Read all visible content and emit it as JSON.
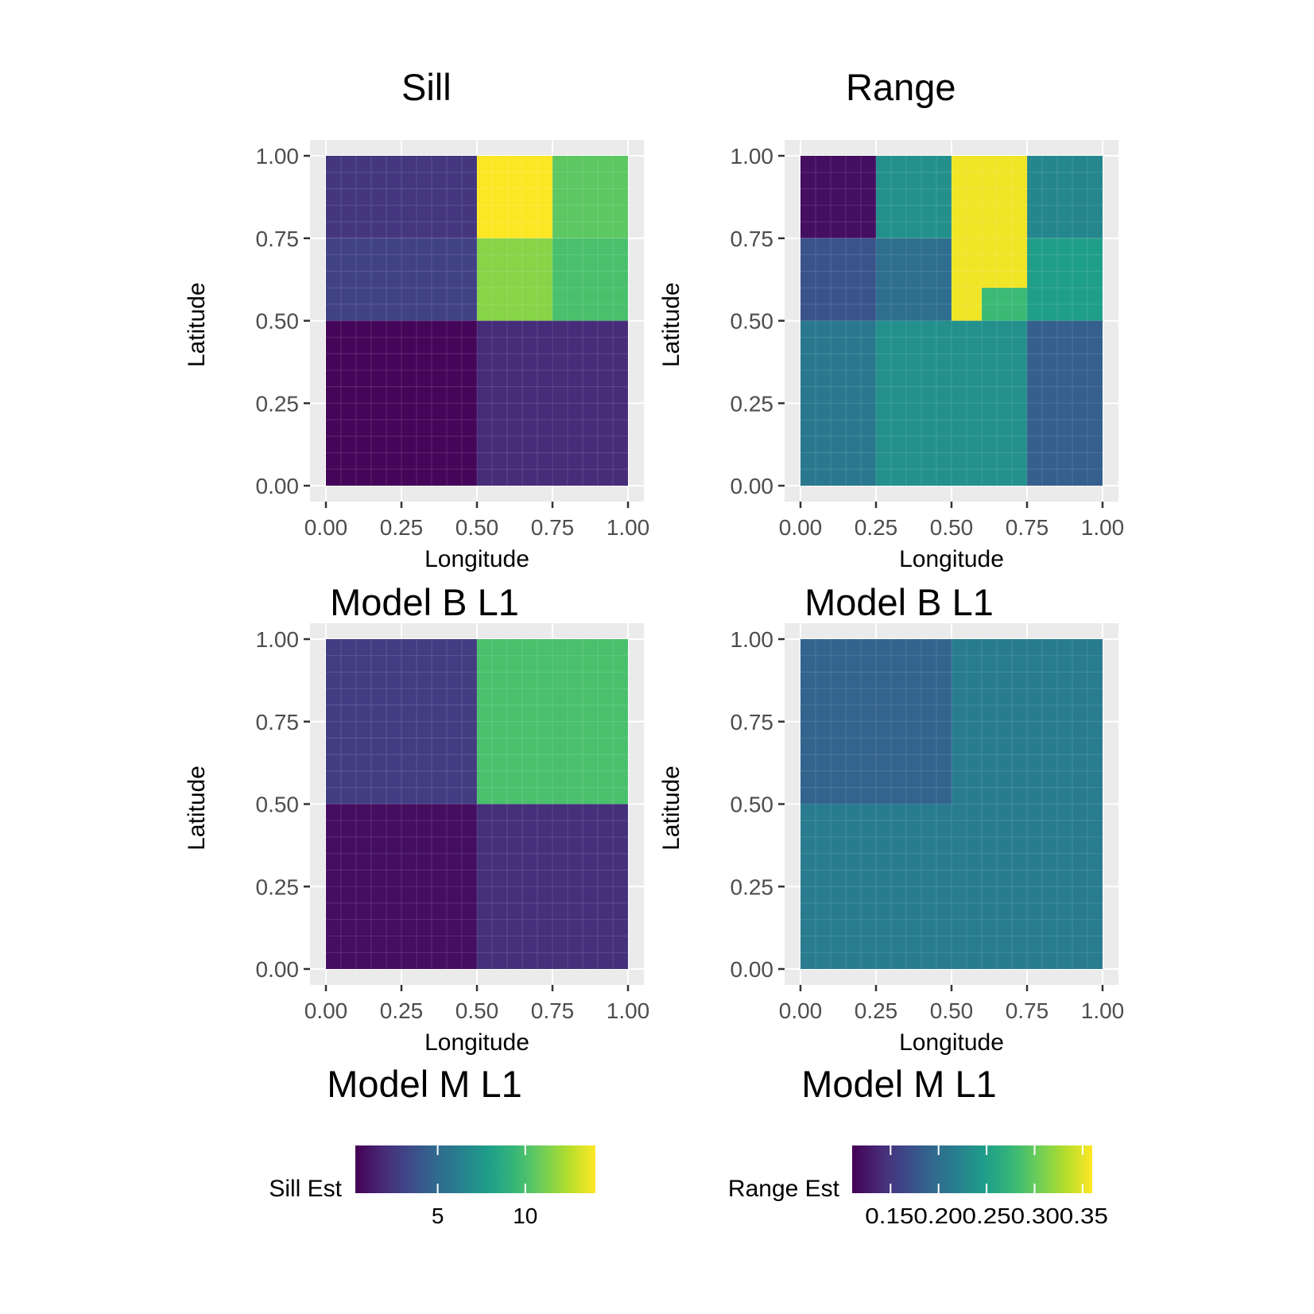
{
  "column_titles": {
    "sill": "Sill",
    "range": "Range"
  },
  "row_labels": {
    "model_b_sill": "Model B L1",
    "model_b_range": "Model B L1",
    "model_m_sill": "Model M L1",
    "model_m_range": "Model M L1"
  },
  "colors": {
    "panel_bg": "#ebebeb",
    "gridline": "#ffffff",
    "axis_text": "#4d4d4d"
  },
  "chart_data": [
    {
      "type": "heatmap",
      "title": "Sill",
      "row_label": "Model B L1",
      "xlabel": "Longitude",
      "ylabel": "Latitude",
      "xlim": [
        0,
        1
      ],
      "ylim": [
        0,
        1
      ],
      "xticks": [
        "0.00",
        "0.25",
        "0.50",
        "0.75",
        "1.00"
      ],
      "yticks": [
        "0.00",
        "0.25",
        "0.50",
        "0.75",
        "1.00"
      ],
      "colorscale": "sill",
      "cells": [
        {
          "x0": 0.0,
          "x1": 0.5,
          "y0": 0.75,
          "y1": 1.0,
          "value": 2.5
        },
        {
          "x0": 0.5,
          "x1": 0.75,
          "y0": 0.75,
          "y1": 1.0,
          "value": 14.0
        },
        {
          "x0": 0.75,
          "x1": 1.0,
          "y0": 0.75,
          "y1": 1.0,
          "value": 10.5
        },
        {
          "x0": 0.0,
          "x1": 0.5,
          "y0": 0.5,
          "y1": 0.75,
          "value": 3.0
        },
        {
          "x0": 0.5,
          "x1": 0.75,
          "y0": 0.5,
          "y1": 0.75,
          "value": 11.5
        },
        {
          "x0": 0.75,
          "x1": 1.0,
          "y0": 0.5,
          "y1": 0.75,
          "value": 10.0
        },
        {
          "x0": 0.0,
          "x1": 0.5,
          "y0": 0.0,
          "y1": 0.5,
          "value": 0.5
        },
        {
          "x0": 0.5,
          "x1": 1.0,
          "y0": 0.0,
          "y1": 0.5,
          "value": 2.0
        }
      ]
    },
    {
      "type": "heatmap",
      "title": "Range",
      "row_label": "Model B L1",
      "xlabel": "Longitude",
      "ylabel": "Latitude",
      "xlim": [
        0,
        1
      ],
      "ylim": [
        0,
        1
      ],
      "xticks": [
        "0.00",
        "0.25",
        "0.50",
        "0.75",
        "1.00"
      ],
      "yticks": [
        "0.00",
        "0.25",
        "0.50",
        "0.75",
        "1.00"
      ],
      "colorscale": "range",
      "cells": [
        {
          "x0": 0.0,
          "x1": 0.25,
          "y0": 0.75,
          "y1": 1.0,
          "value": 0.12
        },
        {
          "x0": 0.25,
          "x1": 0.5,
          "y0": 0.75,
          "y1": 1.0,
          "value": 0.235
        },
        {
          "x0": 0.5,
          "x1": 0.75,
          "y0": 0.5,
          "y1": 1.0,
          "value": 0.355
        },
        {
          "x0": 0.6,
          "x1": 0.75,
          "y0": 0.5,
          "y1": 0.6,
          "value": 0.28
        },
        {
          "x0": 0.75,
          "x1": 1.0,
          "y0": 0.75,
          "y1": 1.0,
          "value": 0.225
        },
        {
          "x0": 0.0,
          "x1": 0.25,
          "y0": 0.5,
          "y1": 0.75,
          "value": 0.175
        },
        {
          "x0": 0.25,
          "x1": 0.5,
          "y0": 0.5,
          "y1": 0.75,
          "value": 0.2
        },
        {
          "x0": 0.75,
          "x1": 1.0,
          "y0": 0.5,
          "y1": 0.75,
          "value": 0.25
        },
        {
          "x0": 0.0,
          "x1": 0.25,
          "y0": 0.0,
          "y1": 0.5,
          "value": 0.21
        },
        {
          "x0": 0.25,
          "x1": 0.75,
          "y0": 0.0,
          "y1": 0.5,
          "value": 0.235
        },
        {
          "x0": 0.75,
          "x1": 1.0,
          "y0": 0.0,
          "y1": 0.5,
          "value": 0.185
        }
      ]
    },
    {
      "type": "heatmap",
      "title": "",
      "row_label": "Model M L1",
      "xlabel": "Longitude",
      "ylabel": "Latitude",
      "xlim": [
        0,
        1
      ],
      "ylim": [
        0,
        1
      ],
      "xticks": [
        "0.00",
        "0.25",
        "0.50",
        "0.75",
        "1.00"
      ],
      "yticks": [
        "0.00",
        "0.25",
        "0.50",
        "0.75",
        "1.00"
      ],
      "colorscale": "sill",
      "cells": [
        {
          "x0": 0.0,
          "x1": 0.5,
          "y0": 0.5,
          "y1": 1.0,
          "value": 2.8
        },
        {
          "x0": 0.5,
          "x1": 1.0,
          "y0": 0.5,
          "y1": 1.0,
          "value": 10.0
        },
        {
          "x0": 0.0,
          "x1": 0.5,
          "y0": 0.0,
          "y1": 0.5,
          "value": 0.8
        },
        {
          "x0": 0.5,
          "x1": 1.0,
          "y0": 0.0,
          "y1": 0.5,
          "value": 2.2
        }
      ]
    },
    {
      "type": "heatmap",
      "title": "",
      "row_label": "Model M L1",
      "xlabel": "Longitude",
      "ylabel": "Latitude",
      "xlim": [
        0,
        1
      ],
      "ylim": [
        0,
        1
      ],
      "xticks": [
        "0.00",
        "0.25",
        "0.50",
        "0.75",
        "1.00"
      ],
      "yticks": [
        "0.00",
        "0.25",
        "0.50",
        "0.75",
        "1.00"
      ],
      "colorscale": "range",
      "cells": [
        {
          "x0": 0.0,
          "x1": 0.5,
          "y0": 0.5,
          "y1": 1.0,
          "value": 0.19
        },
        {
          "x0": 0.5,
          "x1": 1.0,
          "y0": 0.5,
          "y1": 1.0,
          "value": 0.215
        },
        {
          "x0": 0.0,
          "x1": 0.5,
          "y0": 0.0,
          "y1": 0.5,
          "value": 0.215
        },
        {
          "x0": 0.5,
          "x1": 1.0,
          "y0": 0.0,
          "y1": 0.5,
          "value": 0.215
        }
      ]
    }
  ],
  "legends": {
    "sill": {
      "title": "Sill Est",
      "min": 0.3,
      "max": 14.0,
      "breaks": [
        5,
        10
      ],
      "break_labels": [
        "5",
        "10"
      ]
    },
    "range": {
      "title": "Range Est",
      "min": 0.11,
      "max": 0.36,
      "breaks": [
        0.15,
        0.2,
        0.25,
        0.3,
        0.35
      ],
      "break_labels": [
        "0.15",
        "0.20",
        "0.25",
        "0.30",
        "0.35"
      ],
      "tick_text": "0.150.200.250.300.35"
    }
  }
}
